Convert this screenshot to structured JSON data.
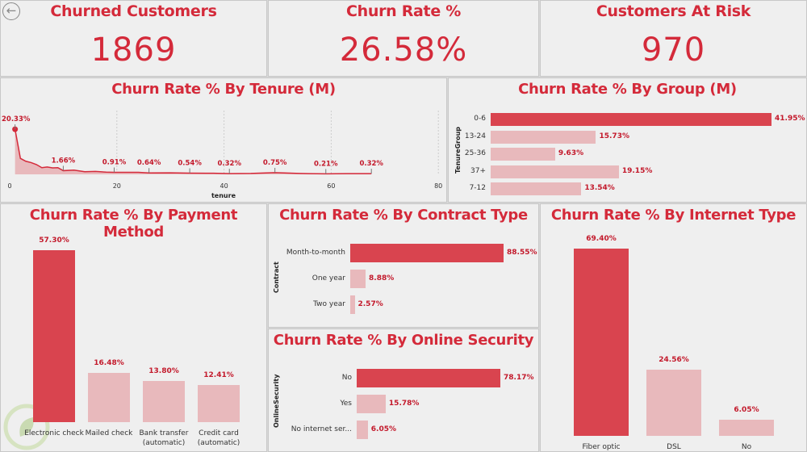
{
  "kpis": [
    {
      "title": "Churned Customers",
      "value": "1869"
    },
    {
      "title": "Churn Rate %",
      "value": "26.58%"
    },
    {
      "title": "Customers At Risk",
      "value": "970"
    }
  ],
  "colors": {
    "accent": "#d9444f",
    "light": "#e8b9bc",
    "title": "#d42a3a"
  },
  "back_icon": "arrow-left-circle-icon",
  "tenure_chart": {
    "title": "Churn Rate % By Tenure (M)",
    "type": "area",
    "xlabel": "tenure",
    "xlim": [
      0,
      80
    ],
    "xticks": [
      "0",
      "20",
      "40",
      "60",
      "80"
    ],
    "points": [
      [
        1,
        20.33
      ],
      [
        2,
        7.2
      ],
      [
        3,
        5.9
      ],
      [
        4,
        5.3
      ],
      [
        5,
        4.4
      ],
      [
        6,
        3.0
      ],
      [
        7,
        3.3
      ],
      [
        8,
        2.9
      ],
      [
        9,
        3.0
      ],
      [
        10,
        1.66
      ],
      [
        12,
        1.9
      ],
      [
        14,
        1.2
      ],
      [
        16,
        1.3
      ],
      [
        18,
        1.0
      ],
      [
        19.5,
        0.91
      ],
      [
        22,
        0.9
      ],
      [
        24,
        0.9
      ],
      [
        26,
        0.64
      ],
      [
        30,
        0.7
      ],
      [
        33.6,
        0.54
      ],
      [
        38,
        0.5
      ],
      [
        41,
        0.32
      ],
      [
        45,
        0.4
      ],
      [
        49.5,
        0.75
      ],
      [
        54,
        0.4
      ],
      [
        59,
        0.21
      ],
      [
        63,
        0.3
      ],
      [
        67.5,
        0.32
      ]
    ],
    "labels": [
      {
        "x": 1,
        "text": "20.33%"
      },
      {
        "x": 10,
        "text": "1.66%"
      },
      {
        "x": 19.5,
        "text": "0.91%"
      },
      {
        "x": 26,
        "text": "0.64%"
      },
      {
        "x": 33.6,
        "text": "0.54%"
      },
      {
        "x": 41,
        "text": "0.32%"
      },
      {
        "x": 49.5,
        "text": "0.75%"
      },
      {
        "x": 59,
        "text": "0.21%"
      },
      {
        "x": 67.5,
        "text": "0.32%"
      }
    ]
  },
  "group_chart": {
    "title": "Churn Rate % By Group (M)",
    "type": "bar",
    "ylabel": "TenureGroup",
    "categories": [
      "0-6",
      "13-24",
      "25-36",
      "37+",
      "7-12"
    ],
    "values": [
      41.95,
      15.73,
      9.63,
      19.15,
      13.54
    ],
    "labels": [
      "41.95%",
      "15.73%",
      "9.63%",
      "19.15%",
      "13.54%"
    ]
  },
  "payment_chart": {
    "title": "Churn Rate % By Payment Method",
    "type": "bar",
    "categories": [
      "Electronic check",
      "Mailed check",
      "Bank transfer (automatic)",
      "Credit card (automatic)"
    ],
    "values": [
      57.3,
      16.48,
      13.8,
      12.41
    ],
    "labels": [
      "57.30%",
      "16.48%",
      "13.80%",
      "12.41%"
    ]
  },
  "contract_chart": {
    "title": "Churn Rate % By Contract Type",
    "type": "bar",
    "ylabel": "Contract",
    "categories": [
      "Month-to-month",
      "One year",
      "Two year"
    ],
    "values": [
      88.55,
      8.88,
      2.57
    ],
    "labels": [
      "88.55%",
      "8.88%",
      "2.57%"
    ]
  },
  "security_chart": {
    "title": "Churn Rate % By Online Security",
    "type": "bar",
    "ylabel": "OnlineSecurity",
    "categories": [
      "No",
      "Yes",
      "No internet ser..."
    ],
    "values": [
      78.17,
      15.78,
      6.05
    ],
    "labels": [
      "78.17%",
      "15.78%",
      "6.05%"
    ]
  },
  "internet_chart": {
    "title": "Churn Rate % By Internet Type",
    "type": "bar",
    "categories": [
      "Fiber optic",
      "DSL",
      "No"
    ],
    "values": [
      69.4,
      24.56,
      6.05
    ],
    "labels": [
      "69.40%",
      "24.56%",
      "6.05%"
    ]
  }
}
